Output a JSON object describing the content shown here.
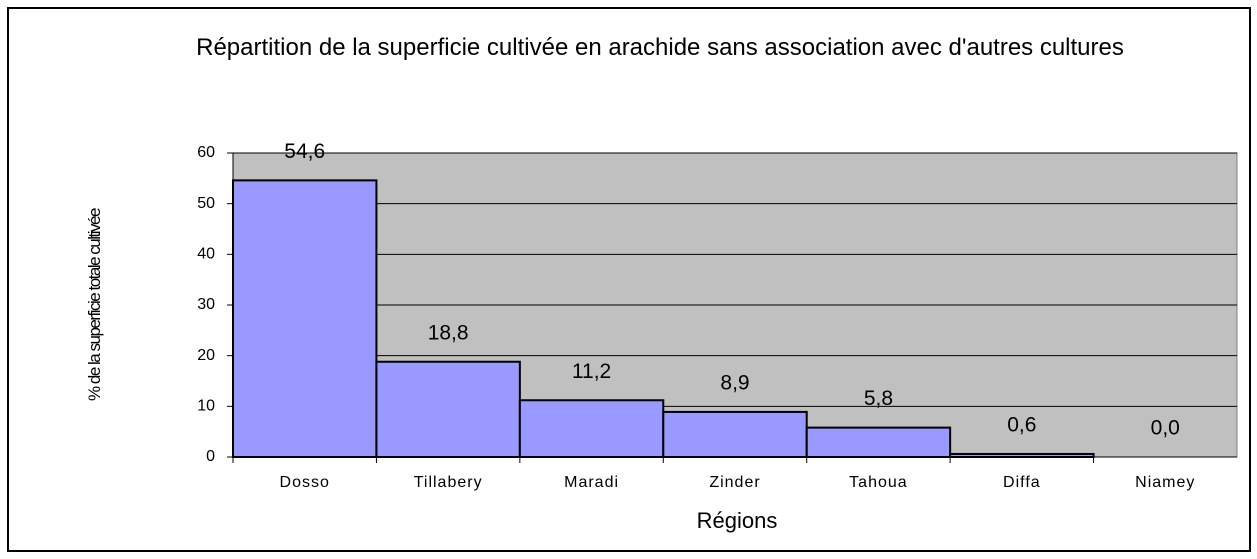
{
  "chart_data": {
    "type": "bar",
    "title": "Répartition de la superficie cultivée en arachide sans association avec d'autres cultures",
    "x_label": "Régions",
    "y_label": "% de la superficie totale cultivée",
    "categories": [
      "Dosso",
      "Tillabery",
      "Maradi",
      "Zinder",
      "Tahoua",
      "Diffa",
      "Niamey"
    ],
    "values": [
      54.6,
      18.8,
      11.2,
      8.9,
      5.8,
      0.6,
      0.0
    ],
    "value_labels": [
      "54,6",
      "18,8",
      "11,2",
      "8,9",
      "5,8",
      "0,6",
      "0,0"
    ],
    "color": "#9999ff",
    "ylim": [
      0,
      60
    ],
    "yticks": [
      0,
      10,
      20,
      30,
      40,
      50,
      60
    ],
    "grid": true
  }
}
